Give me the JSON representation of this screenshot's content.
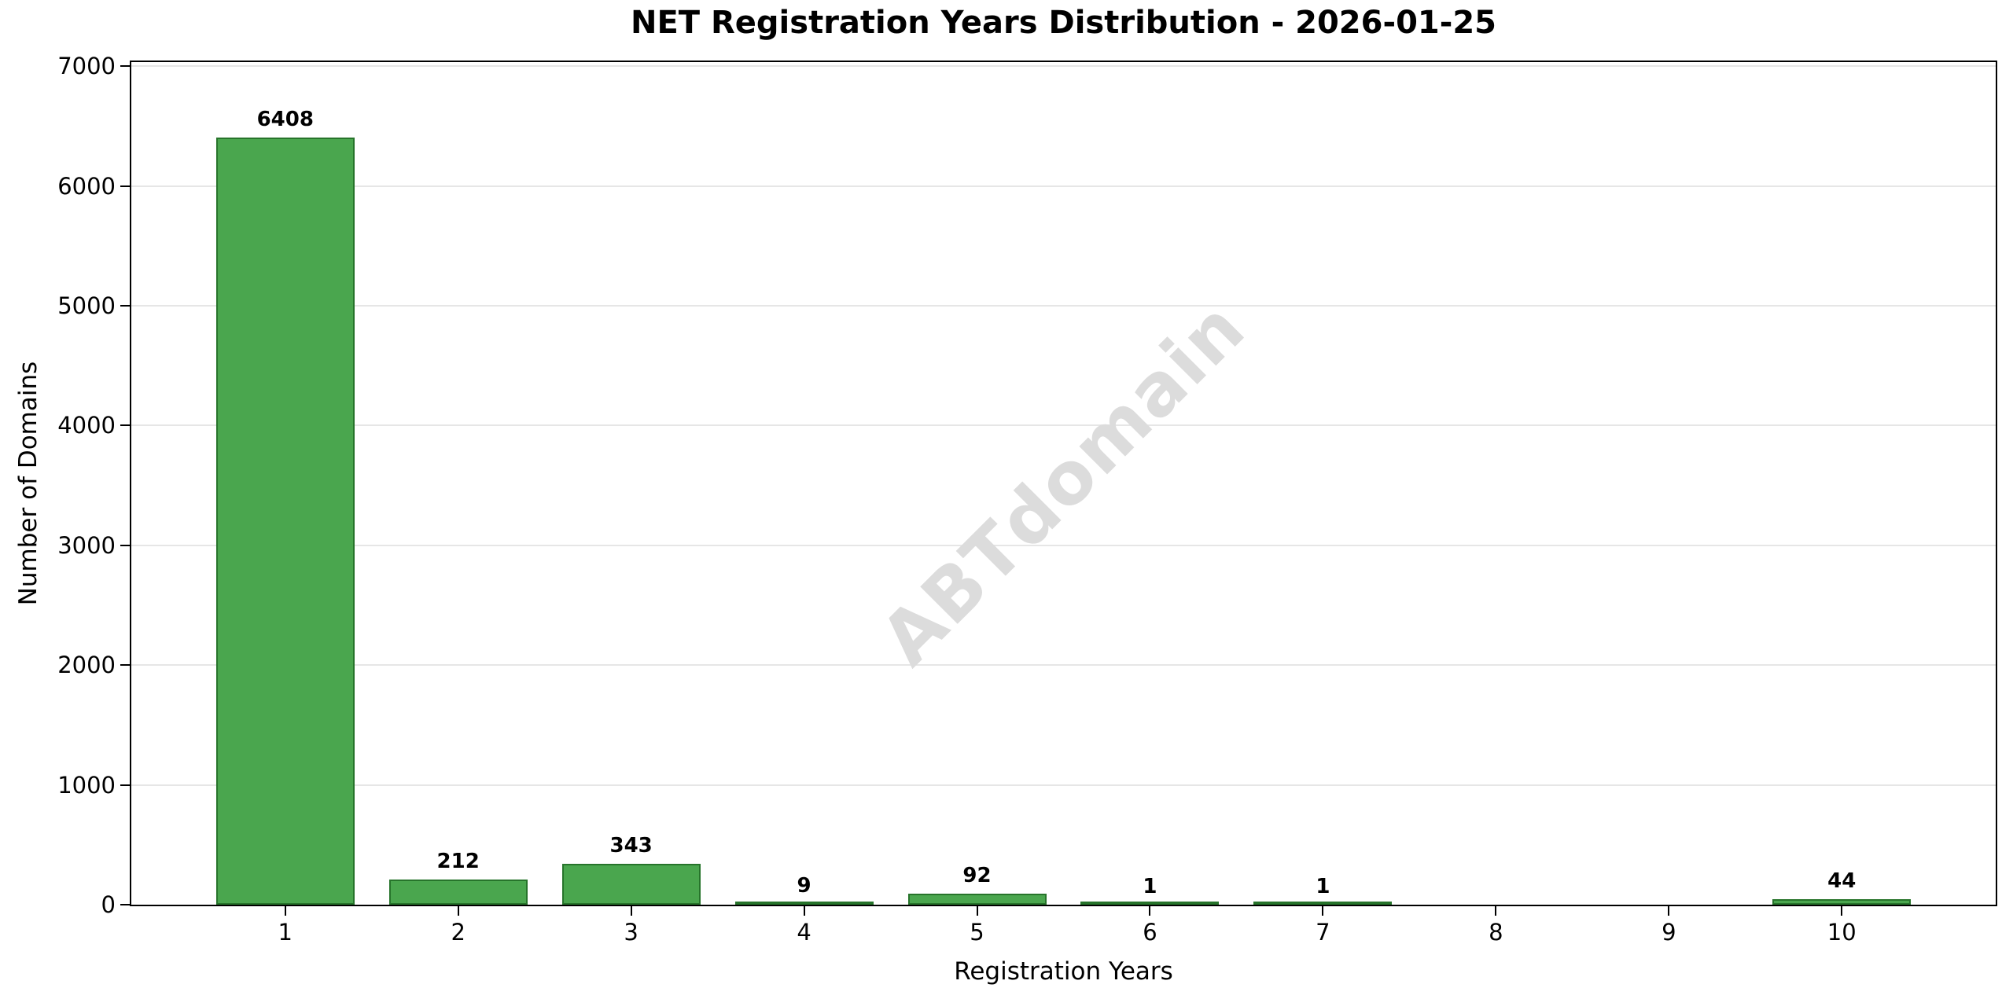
{
  "chart_data": {
    "type": "bar",
    "title": "NET Registration Years Distribution - 2026-01-25",
    "xlabel": "Registration Years",
    "ylabel": "Number of Domains",
    "categories": [
      "1",
      "2",
      "3",
      "4",
      "5",
      "6",
      "7",
      "8",
      "9",
      "10"
    ],
    "values": [
      6408,
      212,
      343,
      9,
      92,
      1,
      1,
      0,
      0,
      44
    ],
    "bar_value_labels": [
      "6408",
      "212",
      "343",
      "9",
      "92",
      "1",
      "1",
      "",
      "",
      "44"
    ],
    "yticks": [
      0,
      1000,
      2000,
      3000,
      4000,
      5000,
      6000,
      7000
    ],
    "ylim": [
      0,
      7000
    ],
    "grid": "horizontal-light",
    "legend_position": "none",
    "watermark": "ABTdomain",
    "colors": {
      "bar_fill": "#4aa64e",
      "bar_edge": "#27742b",
      "watermark": "#dcdcdc",
      "gridline": "#e6e6e6",
      "spine": "#000000",
      "text": "#000000"
    }
  }
}
